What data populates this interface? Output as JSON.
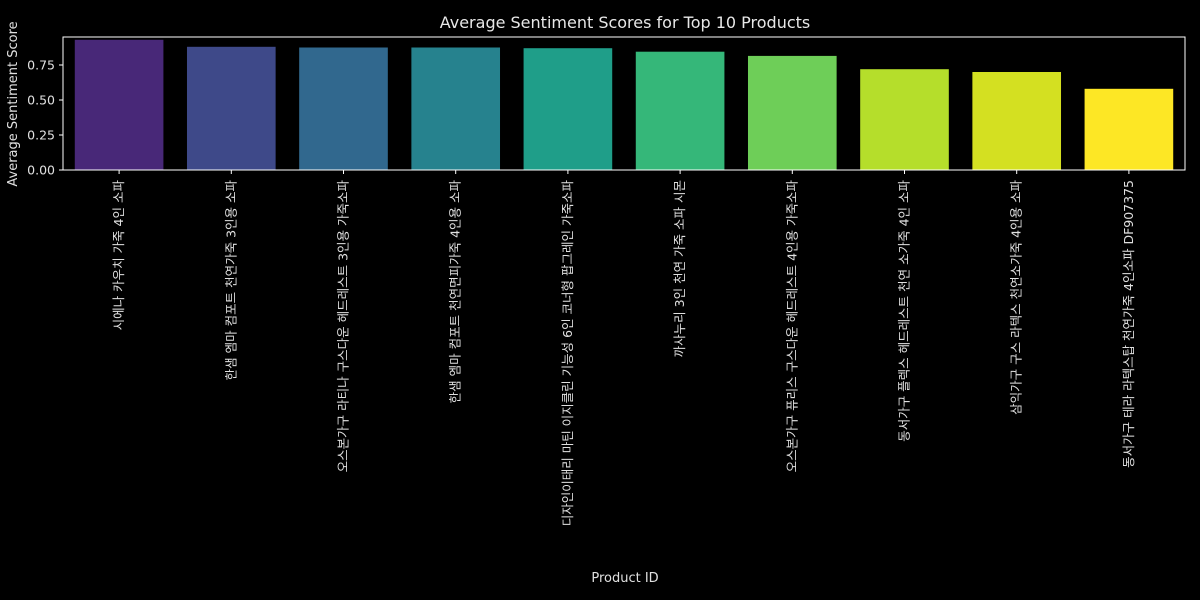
{
  "chart_data": {
    "type": "bar",
    "title": "Average Sentiment Scores for Top 10 Products",
    "xlabel": "Product ID",
    "ylabel": "Average Sentiment Score",
    "ylim": [
      0,
      0.95
    ],
    "yticks": [
      "0.00",
      "0.25",
      "0.50",
      "0.75"
    ],
    "grid": false,
    "categories": [
      "시에나 카우치 가죽 4인 소파",
      "한샘 엠마 컴포트 천연가죽 3인용 소파",
      "오스본가구 라티나 구스다운 헤드레스트 3인용 가죽소파",
      "한샘 엠마 컴포트 천연면피가죽 4인용 소파",
      "디자인이태리 마틴 이지클린 기능성 6인 코너형 팝그레인 가죽소파",
      "까사누리 3인 천연 가죽 소파 시몬",
      "오스본가구 퓨리스 구스다운 헤드레스트 4인용 가죽소파",
      "동서가구 플렉스 헤드레스트 천연 소가죽 4인 소파",
      "삼익가구 구스 라텍스 천연소가죽 4인용 소파",
      "동서가구 테라 라텍스탑 천연가죽 4인소파 DF907375"
    ],
    "values": [
      0.93,
      0.88,
      0.875,
      0.875,
      0.87,
      0.845,
      0.815,
      0.72,
      0.7,
      0.58
    ],
    "colors": [
      "#482878",
      "#3e4989",
      "#31688e",
      "#26828e",
      "#1f9e89",
      "#35b779",
      "#6ece58",
      "#b5de2b",
      "#d4e021",
      "#fde725"
    ]
  }
}
